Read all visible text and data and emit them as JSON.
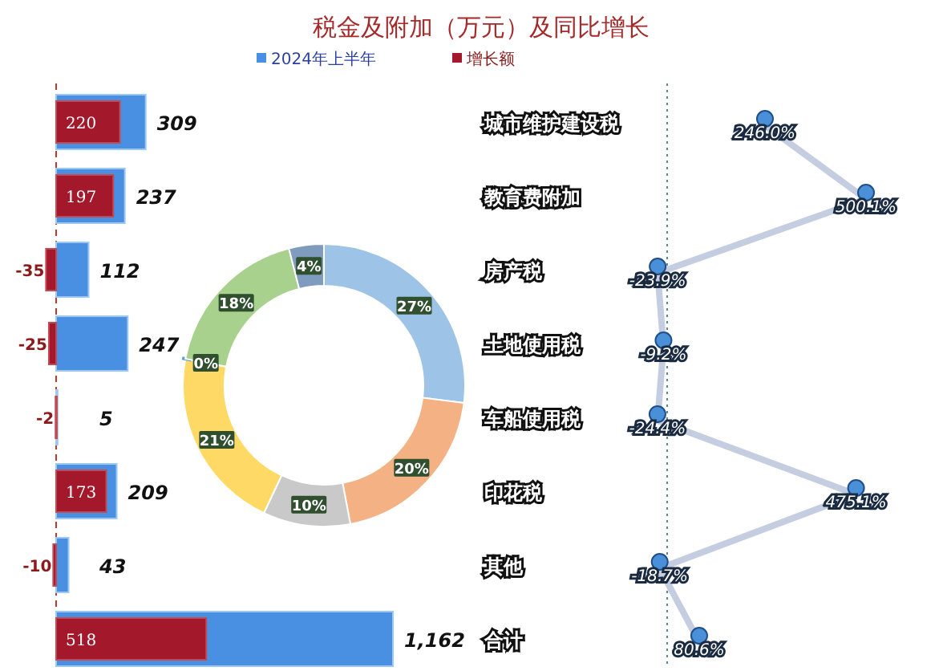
{
  "chart_data": [
    {
      "type": "bar",
      "orientation": "horizontal",
      "title": "税金及附加（万元）及同比增长",
      "legend": "top",
      "categories": [
        "城市维护建设税",
        "教育费附加",
        "房产税",
        "土地使用税",
        "车船使用税",
        "印花税",
        "其他",
        "合计"
      ],
      "series": [
        {
          "name": "2024年上半年",
          "color": "#4a90e2",
          "values": [
            309,
            237,
            112,
            247,
            5,
            209,
            43,
            1162
          ],
          "value_labels": [
            "309",
            "237",
            "112",
            "247",
            "5",
            "209",
            "43",
            "1,162"
          ]
        },
        {
          "name": "增长额",
          "color": "#a3182a",
          "values": [
            220,
            197,
            -35,
            -25,
            -2,
            173,
            -10,
            518
          ],
          "value_labels": [
            "220",
            "197",
            "-35",
            "-25",
            "-2",
            "173",
            "-10",
            "518"
          ]
        }
      ],
      "ref_lines": [
        {
          "axis": "x",
          "value": 0,
          "color": "#c0392b",
          "line_style": "dashed"
        }
      ]
    },
    {
      "type": "donut",
      "categories": [
        null,
        null,
        null,
        null,
        null,
        null,
        null
      ],
      "values": [
        27,
        20,
        10,
        21,
        0,
        18,
        4
      ],
      "colors": [
        "#9dc3e6",
        "#f4b183",
        "#c9c9c9",
        "#ffd966",
        "#5b9bd5",
        "#a9d18e",
        "#7f9cbf"
      ],
      "value_labels": [
        "27%",
        "20%",
        "10%",
        "21%",
        "0%",
        "18%",
        "4%"
      ]
    },
    {
      "type": "line",
      "orientation": "horizontal",
      "color": "#c5cde0",
      "marker": "circle",
      "categories": [
        null,
        null,
        null,
        null,
        null,
        null,
        null,
        null
      ],
      "values": [
        246.0,
        500.1,
        -23.9,
        -9.2,
        -24.4,
        475.1,
        -18.7,
        80.6
      ],
      "value_labels": [
        "246.0%",
        "500.1%",
        "-23.9%",
        "-9.2%",
        "-24.4%",
        "475.1%",
        "-18.7%",
        "80.6%"
      ],
      "ref_lines": [
        {
          "axis": "x",
          "value": 0,
          "color": "#5f8a8b",
          "line_style": "dotted"
        }
      ]
    }
  ]
}
